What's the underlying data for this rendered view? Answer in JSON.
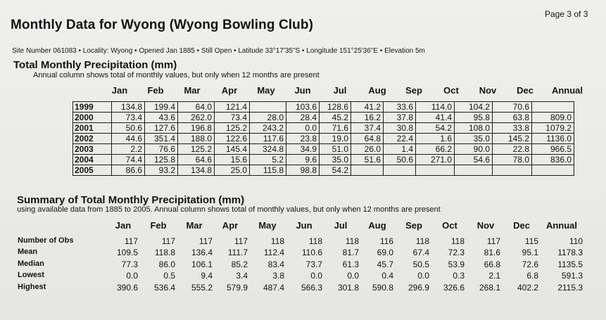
{
  "page_number": "Page 3 of 3",
  "title": "Monthly Data for Wyong (Wyong Bowling Club)",
  "site_line": "Site Number 061083 • Locality: Wyong • Opened Jan 1885 • Still Open • Latitude 33°17'35\"S • Longitude 151°25'36\"E • Elevation 5m",
  "total": {
    "title": "Total Monthly Precipitation (mm)",
    "note": "Annual column shows total of monthly values, but only when 12 months are present",
    "headers": [
      "Jan",
      "Feb",
      "Mar",
      "Apr",
      "May",
      "Jun",
      "Jul",
      "Aug",
      "Sep",
      "Oct",
      "Nov",
      "Dec",
      "Annual"
    ],
    "rows": [
      {
        "year": "1999",
        "values": [
          "134.8",
          "199.4",
          "64.0",
          "121.4",
          "",
          "103.6",
          "128.6",
          "41.2",
          "33.6",
          "114.0",
          "104.2",
          "70.6",
          ""
        ]
      },
      {
        "year": "2000",
        "values": [
          "73.4",
          "43.6",
          "262.0",
          "73.4",
          "28.0",
          "28.4",
          "45.2",
          "16.2",
          "37.8",
          "41.4",
          "95.8",
          "63.8",
          "809.0"
        ]
      },
      {
        "year": "2001",
        "values": [
          "50.6",
          "127.6",
          "196.8",
          "125.2",
          "243.2",
          "0.0",
          "71.6",
          "37.4",
          "30.8",
          "54.2",
          "108.0",
          "33.8",
          "1079.2"
        ]
      },
      {
        "year": "2002",
        "values": [
          "44.6",
          "351.4",
          "188.0",
          "122.6",
          "117.6",
          "23.8",
          "19.0",
          "64.8",
          "22.4",
          "1.6",
          "35.0",
          "145.2",
          "1136.0"
        ]
      },
      {
        "year": "2003",
        "values": [
          "2.2",
          "76.6",
          "125.2",
          "145.4",
          "324.8",
          "34.9",
          "51.0",
          "26.0",
          "1.4",
          "66.2",
          "90.0",
          "22.8",
          "966.5"
        ]
      },
      {
        "year": "2004",
        "values": [
          "74.4",
          "125.8",
          "64.6",
          "15.6",
          "5.2",
          "9.6",
          "35.0",
          "51.6",
          "50.6",
          "271.0",
          "54.6",
          "78.0",
          "836.0"
        ]
      },
      {
        "year": "2005",
        "values": [
          "86.6",
          "93.2",
          "134.8",
          "25.0",
          "115.8",
          "98.8",
          "54.2",
          "",
          "",
          "",
          "",
          "",
          ""
        ]
      }
    ]
  },
  "summary": {
    "title": "Summary of Total Monthly Precipitation (mm)",
    "note": "using available data from 1885 to 2005. Annual column shows total of monthly values, but only when 12 months are present",
    "headers": [
      "Jan",
      "Feb",
      "Mar",
      "Apr",
      "May",
      "Jun",
      "Jul",
      "Aug",
      "Sep",
      "Oct",
      "Nov",
      "Dec",
      "Annual"
    ],
    "rows": [
      {
        "label": "Number of Obs",
        "values": [
          "117",
          "117",
          "117",
          "117",
          "118",
          "118",
          "118",
          "116",
          "118",
          "118",
          "117",
          "115",
          "110"
        ]
      },
      {
        "label": "Mean",
        "values": [
          "109.5",
          "118.8",
          "136.4",
          "111.7",
          "112.4",
          "110.6",
          "81.7",
          "69.0",
          "67.4",
          "72.3",
          "81.6",
          "95.1",
          "1178.3"
        ]
      },
      {
        "label": "Median",
        "values": [
          "77.3",
          "86.0",
          "106.1",
          "85.2",
          "83.4",
          "73.7",
          "61.3",
          "45.7",
          "50.5",
          "53.9",
          "66.8",
          "72.6",
          "1135.5"
        ]
      },
      {
        "label": "Lowest",
        "values": [
          "0.0",
          "0.5",
          "9.4",
          "3.4",
          "3.8",
          "0.0",
          "0.0",
          "0.4",
          "0.0",
          "0.3",
          "2.1",
          "6.8",
          "591.3"
        ]
      },
      {
        "label": "Highest",
        "values": [
          "390.6",
          "536.4",
          "555.2",
          "579.9",
          "487.4",
          "566.3",
          "301.8",
          "590.8",
          "296.9",
          "326.6",
          "268.1",
          "402.2",
          "2115.3"
        ]
      }
    ]
  }
}
